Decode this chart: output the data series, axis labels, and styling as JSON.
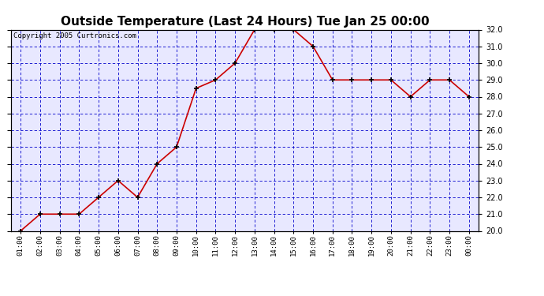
{
  "title": "Outside Temperature (Last 24 Hours) Tue Jan 25 00:00",
  "copyright": "Copyright 2005 Curtronics.com",
  "x_labels": [
    "01:00",
    "02:00",
    "03:00",
    "04:00",
    "05:00",
    "06:00",
    "07:00",
    "08:00",
    "09:00",
    "10:00",
    "11:00",
    "12:00",
    "13:00",
    "14:00",
    "15:00",
    "16:00",
    "17:00",
    "18:00",
    "19:00",
    "20:00",
    "21:00",
    "22:00",
    "23:00",
    "00:00"
  ],
  "y_values": [
    20.0,
    21.0,
    21.0,
    21.0,
    22.0,
    23.0,
    22.0,
    24.0,
    25.0,
    28.5,
    29.0,
    30.0,
    32.0,
    32.0,
    32.0,
    31.0,
    29.0,
    29.0,
    29.0,
    29.0,
    28.0,
    29.0,
    29.0,
    28.0
  ],
  "ylim": [
    20.0,
    32.0
  ],
  "yticks": [
    20.0,
    21.0,
    22.0,
    23.0,
    24.0,
    25.0,
    26.0,
    27.0,
    28.0,
    29.0,
    30.0,
    31.0,
    32.0
  ],
  "line_color": "#cc0000",
  "marker_color": "#000000",
  "background_color": "#ffffff",
  "plot_bg_color": "#e8e8ff",
  "grid_color": "#0000cc",
  "border_color": "#000000",
  "title_fontsize": 11,
  "copyright_fontsize": 6.5
}
